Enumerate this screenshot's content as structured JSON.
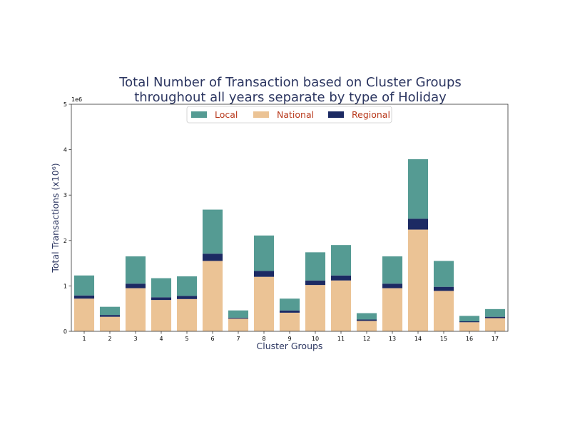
{
  "chart_data": {
    "type": "bar",
    "stacked": true,
    "title_lines": [
      "Total Number of Transaction based on Cluster Groups",
      "throughout all years separate by type of Holiday"
    ],
    "xlabel": "Cluster Groups",
    "ylabel": "Total Transactions (x10⁶)",
    "y_offset_label": "1e6",
    "categories": [
      "1",
      "2",
      "3",
      "4",
      "5",
      "6",
      "7",
      "8",
      "9",
      "10",
      "11",
      "12",
      "13",
      "14",
      "15",
      "16",
      "17"
    ],
    "yticks": [
      "0",
      "1",
      "2",
      "3",
      "4",
      "5"
    ],
    "ylim": [
      0,
      5
    ],
    "y_unit_multiplier": 1000000,
    "stack_order": [
      "National",
      "Regional",
      "Local"
    ],
    "series": [
      {
        "name": "Local",
        "color": "#559b93",
        "values": [
          0.44,
          0.18,
          0.6,
          0.42,
          0.43,
          0.97,
          0.16,
          0.78,
          0.26,
          0.62,
          0.67,
          0.14,
          0.6,
          1.31,
          0.57,
          0.12,
          0.17
        ]
      },
      {
        "name": "National",
        "color": "#ebc395",
        "values": [
          0.72,
          0.32,
          0.95,
          0.69,
          0.71,
          1.55,
          0.28,
          1.2,
          0.41,
          1.02,
          1.12,
          0.23,
          0.95,
          2.24,
          0.89,
          0.2,
          0.29
        ]
      },
      {
        "name": "Regional",
        "color": "#1c2a63",
        "values": [
          0.07,
          0.04,
          0.1,
          0.06,
          0.07,
          0.16,
          0.02,
          0.13,
          0.05,
          0.1,
          0.11,
          0.03,
          0.1,
          0.24,
          0.09,
          0.02,
          0.03
        ]
      }
    ],
    "legend_position": "top-center",
    "grid": false
  }
}
